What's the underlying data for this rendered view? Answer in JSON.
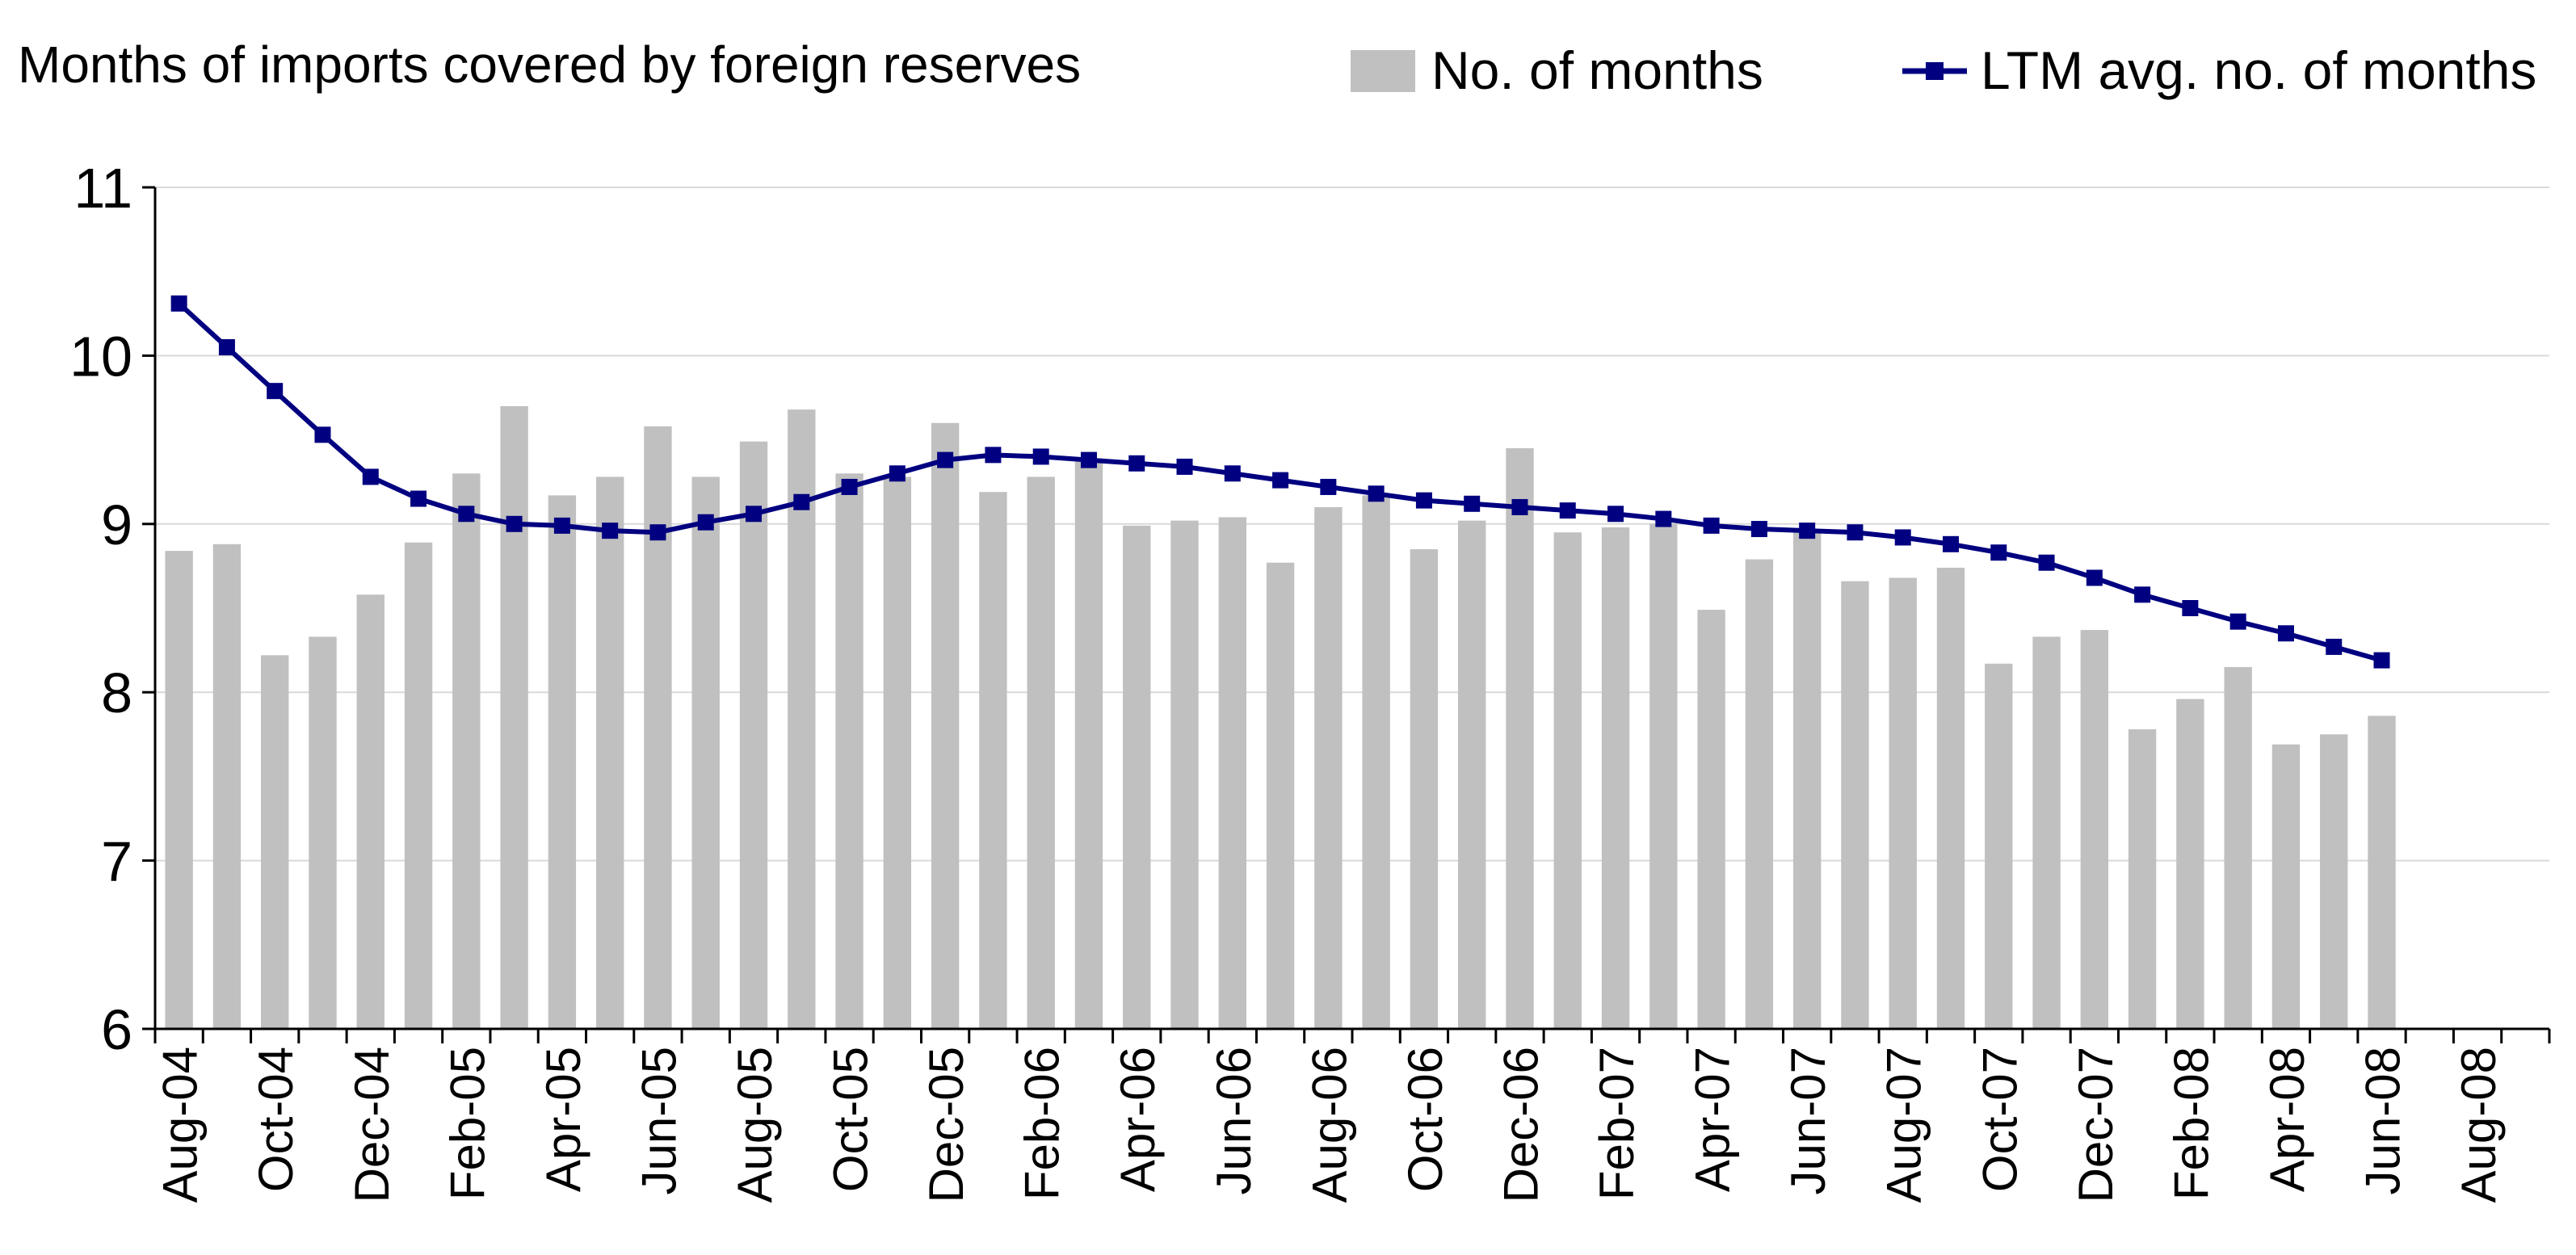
{
  "chart_data": {
    "type": "bar",
    "title": "Months of imports covered by foreign reserves",
    "xlabel": "",
    "ylabel": "",
    "ylim": [
      6,
      11
    ],
    "yticks": [
      6,
      7,
      8,
      9,
      10,
      11
    ],
    "grid": true,
    "legend_position": "top-right",
    "categories": [
      "Aug-04",
      "Sep-04",
      "Oct-04",
      "Nov-04",
      "Dec-04",
      "Jan-05",
      "Feb-05",
      "Mar-05",
      "Apr-05",
      "May-05",
      "Jun-05",
      "Jul-05",
      "Aug-05",
      "Sep-05",
      "Oct-05",
      "Nov-05",
      "Dec-05",
      "Jan-06",
      "Feb-06",
      "Mar-06",
      "Apr-06",
      "May-06",
      "Jun-06",
      "Jul-06",
      "Aug-06",
      "Sep-06",
      "Oct-06",
      "Nov-06",
      "Dec-06",
      "Jan-07",
      "Feb-07",
      "Mar-07",
      "Apr-07",
      "May-07",
      "Jun-07",
      "Jul-07",
      "Aug-07",
      "Sep-07",
      "Oct-07",
      "Nov-07",
      "Dec-07",
      "Jan-08",
      "Feb-08",
      "Mar-08",
      "Apr-08",
      "May-08",
      "Jun-08",
      "Jul-08",
      "Aug-08",
      "Sep-08"
    ],
    "x_tick_labels": [
      "Aug-04",
      "Oct-04",
      "Dec-04",
      "Feb-05",
      "Apr-05",
      "Jun-05",
      "Aug-05",
      "Oct-05",
      "Dec-05",
      "Feb-06",
      "Apr-06",
      "Jun-06",
      "Aug-06",
      "Oct-06",
      "Dec-06",
      "Feb-07",
      "Apr-07",
      "Jun-07",
      "Aug-07",
      "Oct-07",
      "Dec-07",
      "Feb-08",
      "Apr-08",
      "Jun-08",
      "Aug-08"
    ],
    "series": [
      {
        "name": "No. of months",
        "type": "bar",
        "color": "#c0c0c0",
        "values": [
          8.84,
          8.88,
          8.22,
          8.33,
          8.58,
          8.89,
          9.3,
          9.7,
          9.17,
          9.28,
          9.58,
          9.28,
          9.49,
          9.68,
          9.3,
          9.28,
          9.6,
          9.19,
          9.28,
          9.39,
          8.99,
          9.02,
          9.04,
          8.77,
          9.1,
          9.17,
          8.85,
          9.02,
          9.45,
          8.95,
          8.98,
          9.0,
          8.49,
          8.79,
          8.95,
          8.66,
          8.68,
          8.74,
          8.17,
          8.33,
          8.37,
          7.78,
          7.96,
          8.15,
          7.69,
          7.75,
          7.86,
          null,
          null,
          null
        ]
      },
      {
        "name": "LTM avg. no. of months",
        "type": "line",
        "color": "#000080",
        "values": [
          10.31,
          10.05,
          9.79,
          9.53,
          9.28,
          9.15,
          9.06,
          9.0,
          8.99,
          8.96,
          8.95,
          9.01,
          9.06,
          9.13,
          9.22,
          9.3,
          9.38,
          9.41,
          9.4,
          9.38,
          9.36,
          9.34,
          9.3,
          9.26,
          9.22,
          9.18,
          9.14,
          9.12,
          9.1,
          9.08,
          9.06,
          9.03,
          8.99,
          8.97,
          8.96,
          8.95,
          8.92,
          8.88,
          8.83,
          8.77,
          8.68,
          8.58,
          8.5,
          8.42,
          8.35,
          8.27,
          8.19,
          null,
          null,
          null
        ]
      }
    ]
  }
}
